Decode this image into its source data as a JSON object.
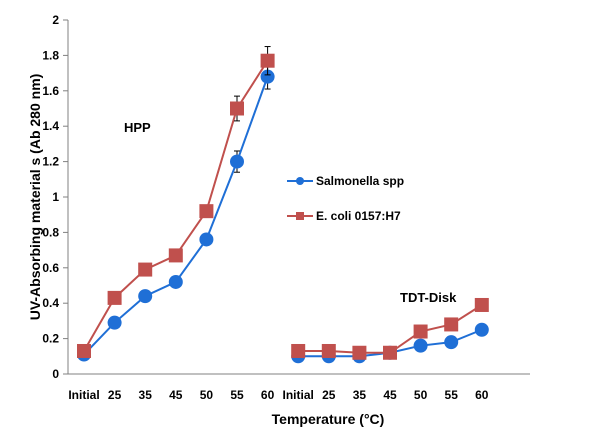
{
  "chart_data": {
    "type": "line",
    "xlabel": "Temperature (°C)",
    "ylabel": "UV-Absorbing material s (Ab 280 nm)",
    "ylim": [
      0,
      2
    ],
    "yticks": [
      "0",
      "0.2",
      "0.4",
      "0.6",
      "0.8",
      "1",
      "1.2",
      "1.4",
      "1.6",
      "1.8",
      "2"
    ],
    "grid": false,
    "legend_position": "center-right",
    "categories": [
      "Initial",
      "25",
      "35",
      "45",
      "50",
      "55",
      "60",
      "Initial",
      "25",
      "35",
      "45",
      "50",
      "55",
      "60"
    ],
    "groups": [
      {
        "label": "HPP",
        "categories": [
          "Initial",
          "25",
          "35",
          "45",
          "50",
          "55",
          "60"
        ]
      },
      {
        "label": "TDT-Disk",
        "categories": [
          "Initial",
          "25",
          "35",
          "45",
          "50",
          "55",
          "60"
        ]
      }
    ],
    "series": [
      {
        "name": "Salmonella spp",
        "color": "#1f6fd6",
        "marker": "circle",
        "groups": [
          [
            0.11,
            0.29,
            0.44,
            0.52,
            0.76,
            1.2,
            1.68
          ],
          [
            0.1,
            0.1,
            0.1,
            0.12,
            0.16,
            0.18,
            0.25
          ]
        ],
        "error": [
          [
            0,
            0,
            0,
            0,
            0.02,
            0.06,
            0.07
          ],
          [
            0,
            0,
            0,
            0,
            0,
            0,
            0
          ]
        ]
      },
      {
        "name": "E. coli  0157:H7",
        "color": "#c0504d",
        "marker": "square",
        "groups": [
          [
            0.13,
            0.43,
            0.59,
            0.67,
            0.92,
            1.5,
            1.77
          ],
          [
            0.13,
            0.13,
            0.12,
            0.12,
            0.24,
            0.28,
            0.39
          ]
        ],
        "error": [
          [
            0,
            0,
            0,
            0,
            0.03,
            0.07,
            0.08
          ],
          [
            0,
            0,
            0,
            0,
            0,
            0,
            0
          ]
        ]
      }
    ]
  }
}
